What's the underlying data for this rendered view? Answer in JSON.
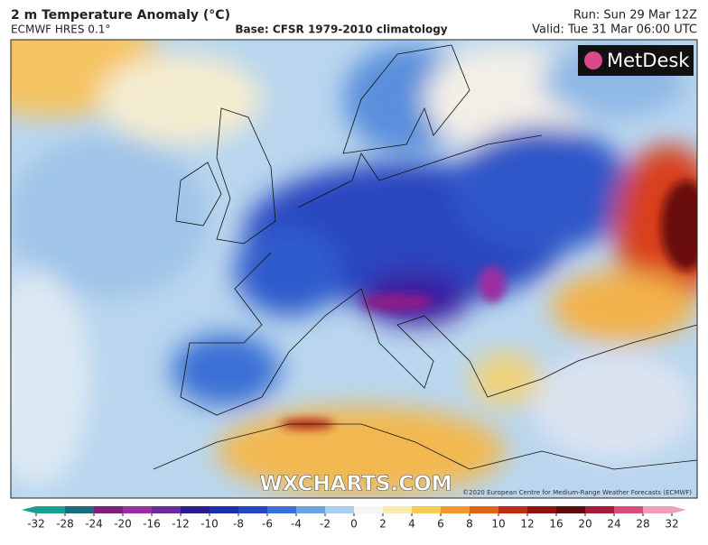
{
  "header": {
    "title": "2 m Temperature Anomaly (°C)",
    "model": "ECMWF HRES 0.1°",
    "base": "Base: CFSR 1979-2010 climatology",
    "run": "Run: Sun 29 Mar 12Z",
    "valid": "Valid: Tue 31 Mar 06:00 UTC"
  },
  "map": {
    "logo": "MetDesk",
    "watermark": "WXCHARTS.COM",
    "copyright": "©2020 European Centre for Medium-Range Weather Forecasts (ECMWF)"
  },
  "legend": {
    "ticks": [
      -32,
      -28,
      -24,
      -20,
      -16,
      -12,
      -10,
      -8,
      -6,
      -4,
      -2,
      0,
      2,
      4,
      6,
      8,
      10,
      12,
      16,
      20,
      24,
      28,
      32
    ],
    "colors": [
      "#1a9e8f",
      "#1b6f7c",
      "#7a1f7a",
      "#9b2fa0",
      "#6a2a9a",
      "#2a1f8a",
      "#1d2fa8",
      "#2446c4",
      "#3a70d6",
      "#6aa2e0",
      "#a9cdee",
      "#f4f4f0",
      "#fbeab0",
      "#f7c95a",
      "#ef9a2a",
      "#e0621c",
      "#c02b18",
      "#8a1410",
      "#5a0f0c",
      "#a31d3a",
      "#d64f7a",
      "#ee9fbd"
    ]
  }
}
